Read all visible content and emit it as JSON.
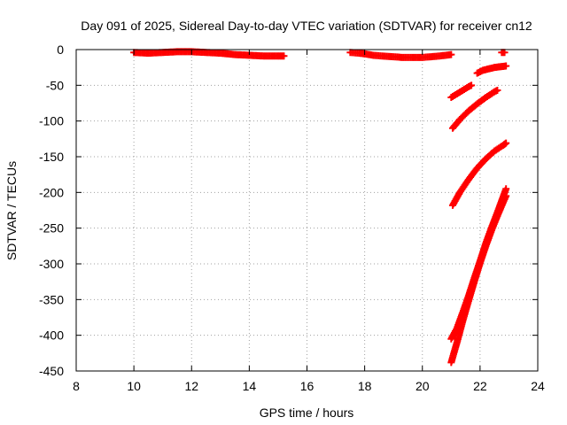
{
  "chart_data": {
    "type": "scatter",
    "title": "Day 091 of 2025, Sidereal Day-to-day VTEC variation (SDTVAR) for receiver cn12",
    "xlabel": "GPS time / hours",
    "ylabel": "SDTVAR / TECUs",
    "xlim": [
      8,
      24
    ],
    "ylim": [
      -450,
      0
    ],
    "xticks": [
      "8",
      "10",
      "12",
      "14",
      "16",
      "18",
      "20",
      "22",
      "24"
    ],
    "yticks": [
      "0",
      "-50",
      "-100",
      "-150",
      "-200",
      "-250",
      "-300",
      "-350",
      "-400",
      "-450"
    ],
    "grid": true,
    "marker": "+",
    "color": "#ff0000",
    "series": [
      {
        "x": [
          10.0,
          10.5,
          11.0,
          11.5,
          12.0,
          12.5,
          13.0,
          13.5,
          14.0,
          14.5,
          15.0,
          15.2
        ],
        "y": [
          -4,
          -5,
          -4,
          -3,
          -3,
          -4,
          -5,
          -7,
          -8,
          -9,
          -9,
          -9
        ]
      },
      {
        "x": [
          17.5,
          17.8,
          18.0,
          18.3,
          18.6,
          19.0,
          19.3,
          19.6,
          20.0,
          20.3,
          20.6,
          21.0
        ],
        "y": [
          -4,
          -5,
          -6,
          -8,
          -9,
          -10,
          -11,
          -11,
          -11,
          -10,
          -9,
          -7
        ]
      },
      {
        "x": [
          21.0,
          21.2,
          21.4,
          21.6,
          21.7
        ],
        "y": [
          -67,
          -62,
          -57,
          -52,
          -50
        ]
      },
      {
        "x": [
          21.9,
          22.1,
          22.3,
          22.5,
          22.7,
          22.9
        ],
        "y": [
          -33,
          -29,
          -27,
          -25,
          -24,
          -23
        ]
      },
      {
        "x": [
          22.75,
          22.85
        ],
        "y": [
          -4,
          -4
        ]
      },
      {
        "x": [
          21.05,
          21.3,
          21.6,
          21.9,
          22.2,
          22.5,
          22.6
        ],
        "y": [
          -110,
          -98,
          -86,
          -76,
          -67,
          -59,
          -57
        ]
      },
      {
        "x": [
          21.05,
          21.3,
          21.6,
          21.9,
          22.2,
          22.5,
          22.8,
          22.9
        ],
        "y": [
          -218,
          -200,
          -182,
          -166,
          -153,
          -142,
          -134,
          -131
        ]
      },
      {
        "x": [
          21.0,
          21.2,
          21.4,
          21.6,
          21.8,
          22.0,
          22.2,
          22.4,
          22.6,
          22.8,
          22.9
        ],
        "y": [
          -405,
          -390,
          -368,
          -345,
          -320,
          -296,
          -271,
          -249,
          -228,
          -206,
          -195
        ]
      },
      {
        "x": [
          21.0,
          21.2,
          21.4,
          21.6,
          21.8,
          22.0,
          22.2,
          22.4,
          22.6,
          22.8,
          22.9
        ],
        "y": [
          -438,
          -410,
          -380,
          -352,
          -325,
          -299,
          -275,
          -253,
          -233,
          -214,
          -205
        ]
      }
    ]
  }
}
